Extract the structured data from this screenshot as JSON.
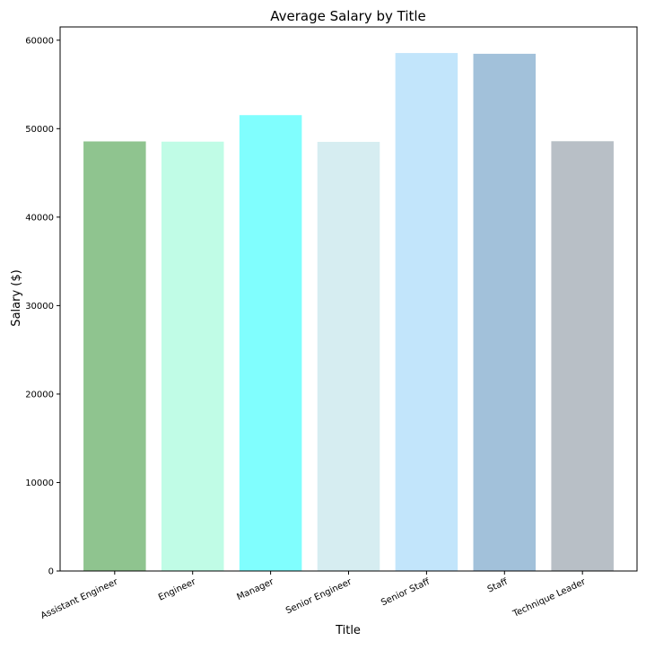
{
  "chart_data": {
    "type": "bar",
    "title": "Average Salary by Title",
    "xlabel": "Title",
    "ylabel": "Salary ($)",
    "categories": [
      "Assistant Engineer",
      "Engineer",
      "Manager",
      "Senior Engineer",
      "Senior Staff",
      "Staff",
      "Technique Leader"
    ],
    "values": [
      48560,
      48535,
      51531,
      48507,
      58550,
      58465,
      48582
    ],
    "colors": [
      "#8fc48f",
      "#c0fce6",
      "#80fefe",
      "#d6edf1",
      "#c2e5fb",
      "#a2c1da",
      "#b8bfc6"
    ],
    "ylim": [
      0,
      61500
    ],
    "yticks": [
      0,
      10000,
      20000,
      30000,
      40000,
      50000,
      60000
    ],
    "ytick_labels": [
      "0",
      "10000",
      "20000",
      "30000",
      "40000",
      "50000",
      "60000"
    ],
    "grid": false,
    "legend": false
  }
}
